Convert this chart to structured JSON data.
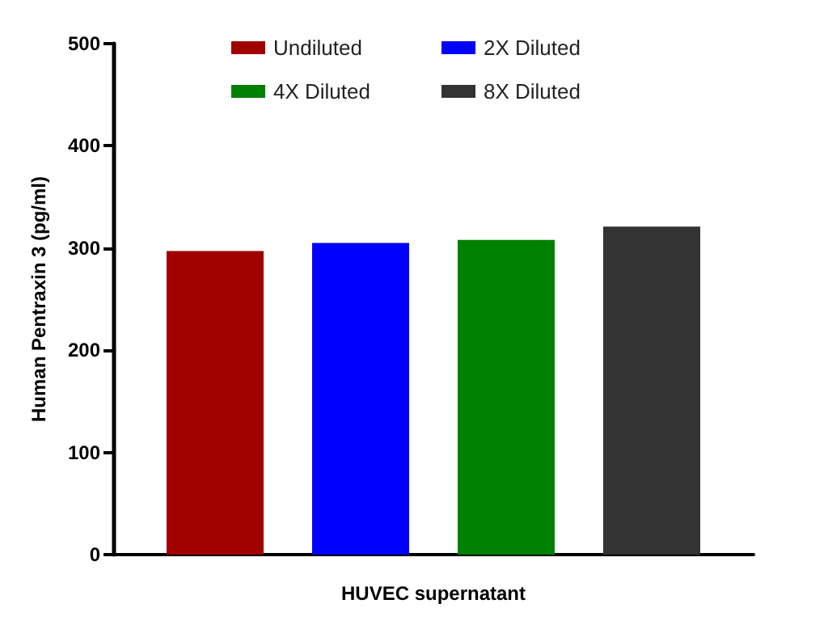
{
  "chart_data": {
    "type": "bar",
    "xlabel": "HUVEC supernatant",
    "ylabel": "Human Pentraxin 3 (pg/ml)",
    "categories": [
      null
    ],
    "series": [
      {
        "name": "Undiluted",
        "color": "#a00000",
        "values": [
          297
        ]
      },
      {
        "name": "2X Diluted",
        "color": "#0000ff",
        "values": [
          305
        ]
      },
      {
        "name": "4X Diluted",
        "color": "#008000",
        "values": [
          308
        ]
      },
      {
        "name": "8X Diluted",
        "color": "#333333",
        "values": [
          321
        ]
      }
    ],
    "ylim": [
      0,
      500
    ],
    "yticks": [
      0,
      100,
      200,
      300,
      400,
      500
    ],
    "grid": false,
    "legend": "top"
  }
}
